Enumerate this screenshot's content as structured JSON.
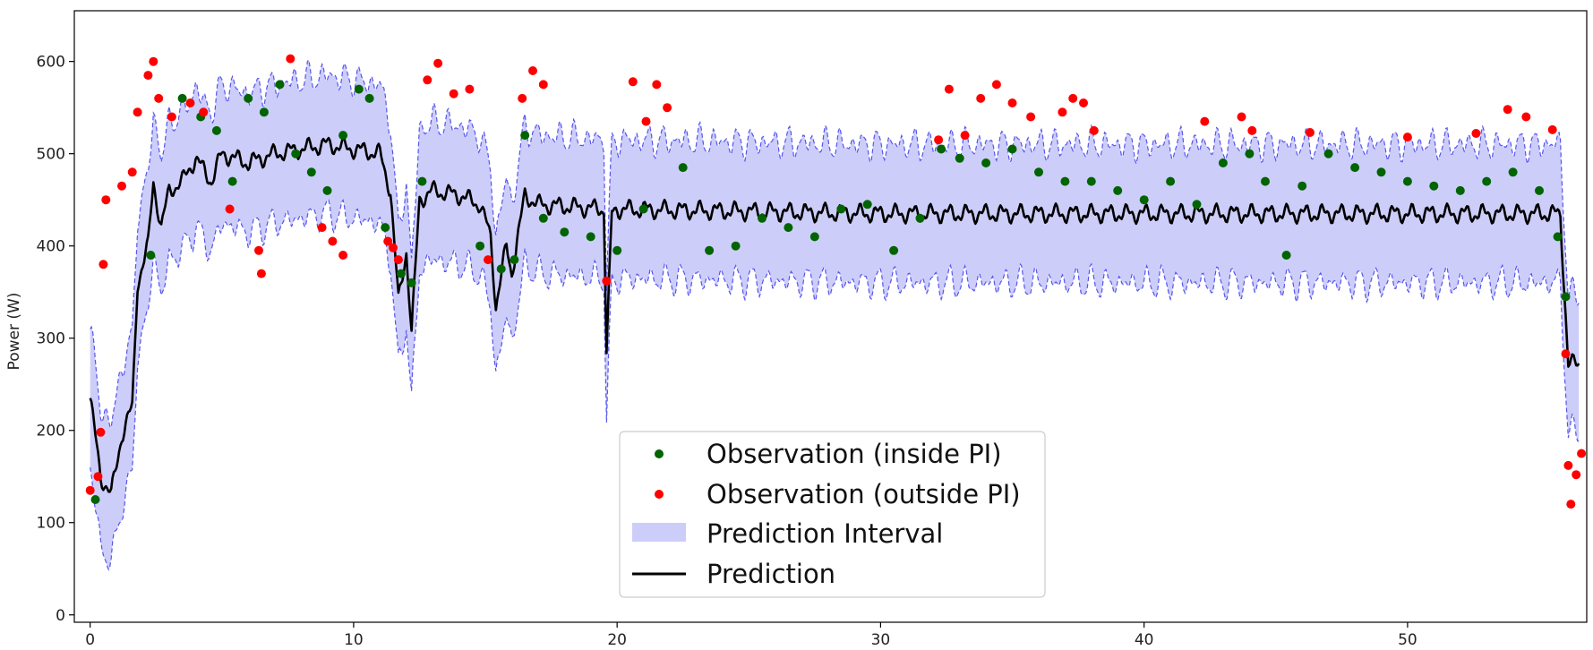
{
  "chart_data": {
    "type": "line",
    "title": "",
    "xlabel": "",
    "ylabel": "Power (W)",
    "xlim": [
      -0.6,
      56.8
    ],
    "ylim": [
      -8,
      655
    ],
    "x_ticks": [
      0,
      10,
      20,
      30,
      40,
      50
    ],
    "y_ticks": [
      0,
      100,
      200,
      300,
      400,
      500,
      600
    ],
    "grid": false,
    "legend_position": "bottom-center",
    "colors": {
      "inside": "#006400",
      "outside": "#ff0000",
      "interval_fill": "#cdcdfa",
      "interval_edge": "#5555ee",
      "prediction": "#000000"
    },
    "legend": [
      {
        "key": "inside",
        "label": "Observation (inside PI)"
      },
      {
        "key": "outside",
        "label": "Observation (outside PI)"
      },
      {
        "key": "interval",
        "label": "Prediction Interval"
      },
      {
        "key": "prediction",
        "label": "Prediction"
      }
    ],
    "prediction_knots": [
      [
        0,
        235
      ],
      [
        0.4,
        150
      ],
      [
        0.8,
        130
      ],
      [
        1.2,
        195
      ],
      [
        1.6,
        225
      ],
      [
        1.8,
        360
      ],
      [
        2.2,
        400
      ],
      [
        2.4,
        470
      ],
      [
        2.7,
        420
      ],
      [
        3.0,
        460
      ],
      [
        3.5,
        470
      ],
      [
        4.0,
        495
      ],
      [
        4.6,
        470
      ],
      [
        5.0,
        500
      ],
      [
        6.0,
        490
      ],
      [
        7.0,
        500
      ],
      [
        8.0,
        505
      ],
      [
        9.0,
        510
      ],
      [
        10.0,
        505
      ],
      [
        11.0,
        500
      ],
      [
        11.4,
        460
      ],
      [
        11.7,
        340
      ],
      [
        12.0,
        395
      ],
      [
        12.2,
        305
      ],
      [
        12.5,
        450
      ],
      [
        13.0,
        460
      ],
      [
        14.0,
        455
      ],
      [
        14.8,
        445
      ],
      [
        15.2,
        410
      ],
      [
        15.4,
        335
      ],
      [
        15.8,
        400
      ],
      [
        16.0,
        370
      ],
      [
        16.5,
        455
      ],
      [
        17.0,
        445
      ],
      [
        19.5,
        440
      ],
      [
        19.6,
        285
      ],
      [
        19.8,
        435
      ],
      [
        20.0,
        440
      ],
      [
        30.0,
        435
      ],
      [
        40.0,
        435
      ],
      [
        55.8,
        435
      ],
      [
        56.1,
        270
      ],
      [
        56.5,
        275
      ]
    ],
    "interval_half_width": 75,
    "observations_inside": [
      [
        0.2,
        125
      ],
      [
        2.3,
        390
      ],
      [
        3.5,
        560
      ],
      [
        4.2,
        540
      ],
      [
        4.8,
        525
      ],
      [
        5.4,
        470
      ],
      [
        6.0,
        560
      ],
      [
        6.6,
        545
      ],
      [
        7.2,
        575
      ],
      [
        7.8,
        500
      ],
      [
        8.4,
        480
      ],
      [
        9.0,
        460
      ],
      [
        9.6,
        520
      ],
      [
        10.2,
        570
      ],
      [
        10.6,
        560
      ],
      [
        11.2,
        420
      ],
      [
        11.8,
        370
      ],
      [
        12.2,
        360
      ],
      [
        12.6,
        470
      ],
      [
        14.8,
        400
      ],
      [
        15.6,
        375
      ],
      [
        16.1,
        385
      ],
      [
        16.5,
        520
      ],
      [
        17.2,
        430
      ],
      [
        18.0,
        415
      ],
      [
        19.0,
        410
      ],
      [
        20.0,
        395
      ],
      [
        21.0,
        440
      ],
      [
        22.5,
        485
      ],
      [
        23.5,
        395
      ],
      [
        24.5,
        400
      ],
      [
        25.5,
        430
      ],
      [
        26.5,
        420
      ],
      [
        27.5,
        410
      ],
      [
        28.5,
        440
      ],
      [
        29.5,
        445
      ],
      [
        30.5,
        395
      ],
      [
        31.5,
        430
      ],
      [
        32.3,
        505
      ],
      [
        33.0,
        495
      ],
      [
        34.0,
        490
      ],
      [
        35.0,
        505
      ],
      [
        36.0,
        480
      ],
      [
        37.0,
        470
      ],
      [
        38.0,
        470
      ],
      [
        39.0,
        460
      ],
      [
        40.0,
        450
      ],
      [
        41.0,
        470
      ],
      [
        42.0,
        445
      ],
      [
        43.0,
        490
      ],
      [
        44.0,
        500
      ],
      [
        44.6,
        470
      ],
      [
        45.4,
        390
      ],
      [
        46.0,
        465
      ],
      [
        47.0,
        500
      ],
      [
        48.0,
        485
      ],
      [
        49.0,
        480
      ],
      [
        50.0,
        470
      ],
      [
        51.0,
        465
      ],
      [
        52.0,
        460
      ],
      [
        53.0,
        470
      ],
      [
        54.0,
        480
      ],
      [
        55.0,
        460
      ],
      [
        55.7,
        410
      ],
      [
        56.0,
        345
      ]
    ],
    "observations_outside": [
      [
        0.0,
        135
      ],
      [
        0.3,
        150
      ],
      [
        0.4,
        198
      ],
      [
        0.5,
        380
      ],
      [
        0.6,
        450
      ],
      [
        1.2,
        465
      ],
      [
        1.6,
        480
      ],
      [
        1.8,
        545
      ],
      [
        2.2,
        585
      ],
      [
        2.4,
        600
      ],
      [
        2.6,
        560
      ],
      [
        3.1,
        540
      ],
      [
        3.8,
        555
      ],
      [
        4.3,
        545
      ],
      [
        5.3,
        440
      ],
      [
        6.4,
        395
      ],
      [
        6.5,
        370
      ],
      [
        7.6,
        603
      ],
      [
        8.8,
        420
      ],
      [
        9.2,
        405
      ],
      [
        9.6,
        390
      ],
      [
        11.3,
        405
      ],
      [
        11.5,
        398
      ],
      [
        11.7,
        385
      ],
      [
        12.8,
        580
      ],
      [
        13.2,
        598
      ],
      [
        13.8,
        565
      ],
      [
        14.4,
        570
      ],
      [
        15.1,
        385
      ],
      [
        16.4,
        560
      ],
      [
        16.8,
        590
      ],
      [
        17.2,
        575
      ],
      [
        19.6,
        362
      ],
      [
        20.6,
        578
      ],
      [
        21.1,
        535
      ],
      [
        21.5,
        575
      ],
      [
        21.9,
        550
      ],
      [
        32.2,
        515
      ],
      [
        32.6,
        570
      ],
      [
        33.2,
        520
      ],
      [
        33.8,
        560
      ],
      [
        34.4,
        575
      ],
      [
        35.0,
        555
      ],
      [
        35.7,
        540
      ],
      [
        36.9,
        545
      ],
      [
        37.3,
        560
      ],
      [
        37.7,
        555
      ],
      [
        38.1,
        525
      ],
      [
        42.3,
        535
      ],
      [
        43.7,
        540
      ],
      [
        44.1,
        525
      ],
      [
        46.3,
        523
      ],
      [
        50.0,
        518
      ],
      [
        52.6,
        522
      ],
      [
        53.8,
        548
      ],
      [
        54.5,
        540
      ],
      [
        55.5,
        526
      ],
      [
        56.0,
        283
      ],
      [
        56.1,
        162
      ],
      [
        56.2,
        120
      ],
      [
        56.4,
        152
      ],
      [
        56.6,
        175
      ]
    ]
  }
}
